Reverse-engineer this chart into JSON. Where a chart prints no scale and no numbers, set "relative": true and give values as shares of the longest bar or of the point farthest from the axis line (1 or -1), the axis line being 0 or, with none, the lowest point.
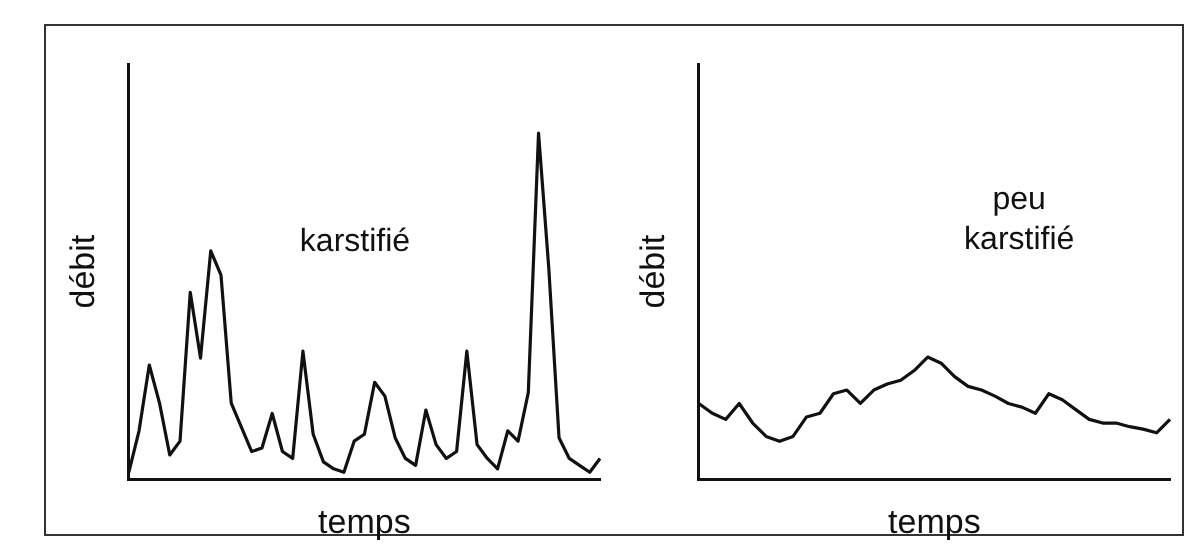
{
  "chart_data": [
    {
      "type": "line",
      "relative": true,
      "xlabel": "temps",
      "ylabel": "débit",
      "annotations": [
        "karstifié"
      ],
      "marker": "none",
      "color": "#111111",
      "categories": [
        null,
        null,
        null,
        null,
        null,
        null,
        null,
        null,
        null,
        null,
        null,
        null,
        null,
        null,
        null,
        null,
        null,
        null,
        null,
        null,
        null,
        null,
        null,
        null,
        null,
        null,
        null,
        null,
        null,
        null,
        null,
        null,
        null,
        null,
        null,
        null,
        null,
        null,
        null,
        null,
        null,
        null,
        null,
        null,
        null,
        null,
        null
      ],
      "values": [
        0.02,
        0.14,
        0.33,
        0.22,
        0.07,
        0.11,
        0.54,
        0.35,
        0.66,
        0.59,
        0.22,
        0.15,
        0.08,
        0.09,
        0.19,
        0.08,
        0.06,
        0.37,
        0.13,
        0.05,
        0.03,
        0.02,
        0.11,
        0.13,
        0.28,
        0.24,
        0.12,
        0.06,
        0.04,
        0.2,
        0.1,
        0.06,
        0.08,
        0.37,
        0.1,
        0.06,
        0.03,
        0.14,
        0.11,
        0.25,
        1.0,
        0.61,
        0.12,
        0.06,
        0.04,
        0.02,
        0.06
      ]
    },
    {
      "type": "line",
      "relative": true,
      "xlabel": "temps",
      "ylabel": "débit",
      "annotations": [
        "peu karstifié"
      ],
      "marker": "none",
      "color": "#111111",
      "categories": [
        null,
        null,
        null,
        null,
        null,
        null,
        null,
        null,
        null,
        null,
        null,
        null,
        null,
        null,
        null,
        null,
        null,
        null,
        null,
        null,
        null,
        null,
        null,
        null,
        null,
        null,
        null,
        null,
        null,
        null,
        null,
        null,
        null,
        null,
        null,
        null
      ],
      "values": [
        0.62,
        0.54,
        0.49,
        0.62,
        0.46,
        0.35,
        0.31,
        0.35,
        0.51,
        0.54,
        0.7,
        0.73,
        0.62,
        0.73,
        0.78,
        0.81,
        0.89,
        1.0,
        0.95,
        0.84,
        0.76,
        0.73,
        0.68,
        0.62,
        0.59,
        0.54,
        0.7,
        0.65,
        0.57,
        0.49,
        0.46,
        0.46,
        0.43,
        0.41,
        0.38,
        0.49
      ]
    }
  ]
}
